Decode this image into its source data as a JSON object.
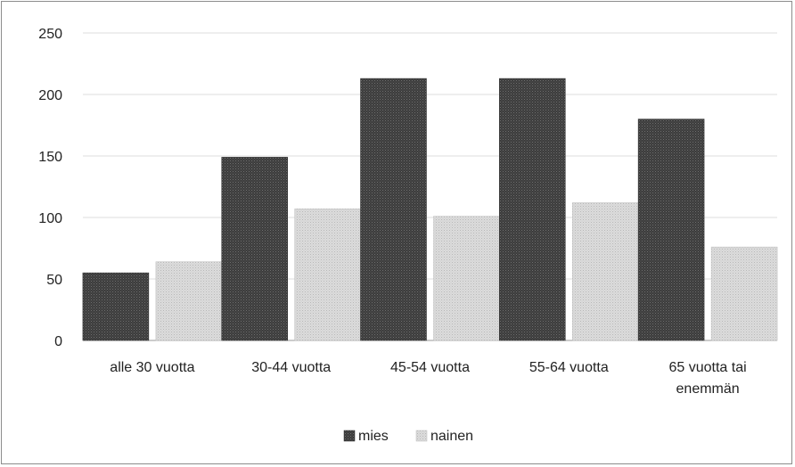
{
  "chart_data": {
    "type": "bar",
    "categories": [
      "alle 30 vuotta",
      "30-44 vuotta",
      "45-54 vuotta",
      "55-64 vuotta",
      "65 vuotta tai enemmän"
    ],
    "category_lines": [
      [
        "alle 30 vuotta"
      ],
      [
        "30-44 vuotta"
      ],
      [
        "45-54 vuotta"
      ],
      [
        "55-64 vuotta"
      ],
      [
        "65 vuotta tai",
        "enemmän"
      ]
    ],
    "series": [
      {
        "name": "mies",
        "values": [
          55,
          149,
          213,
          213,
          180
        ],
        "color": "#4a4a4a"
      },
      {
        "name": "nainen",
        "values": [
          64,
          107,
          101,
          112,
          76
        ],
        "color": "#d6d6d6"
      }
    ],
    "yticks": [
      0,
      50,
      100,
      150,
      200,
      250
    ],
    "ylim": [
      0,
      250
    ],
    "grid": true,
    "legend": "bottom",
    "title": "",
    "xlabel": "",
    "ylabel": ""
  }
}
